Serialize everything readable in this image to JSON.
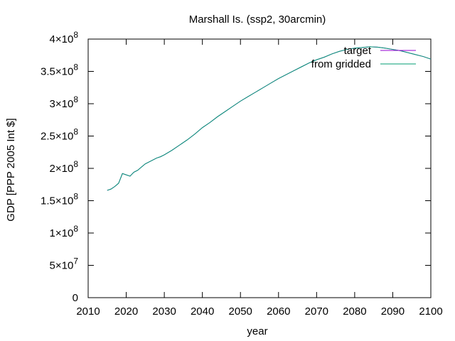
{
  "chart_data": {
    "type": "line",
    "title": "Marshall Is. (ssp2, 30arcmin)",
    "xlabel": "year",
    "ylabel": "GDP [PPP 2005 Int $]",
    "xlim": [
      2010,
      2100
    ],
    "ylim": [
      0,
      400000000
    ],
    "x_ticks": [
      {
        "value": 2010,
        "label": "2010"
      },
      {
        "value": 2020,
        "label": "2020"
      },
      {
        "value": 2030,
        "label": "2030"
      },
      {
        "value": 2040,
        "label": "2040"
      },
      {
        "value": 2050,
        "label": "2050"
      },
      {
        "value": 2060,
        "label": "2060"
      },
      {
        "value": 2070,
        "label": "2070"
      },
      {
        "value": 2080,
        "label": "2080"
      },
      {
        "value": 2090,
        "label": "2090"
      },
      {
        "value": 2100,
        "label": "2100"
      }
    ],
    "y_ticks": [
      {
        "value": 0,
        "mantissa": "0",
        "exp": ""
      },
      {
        "value": 50000000,
        "mantissa": "5×10",
        "exp": "7"
      },
      {
        "value": 100000000,
        "mantissa": "1×10",
        "exp": "8"
      },
      {
        "value": 150000000,
        "mantissa": "1.5×10",
        "exp": "8"
      },
      {
        "value": 200000000,
        "mantissa": "2×10",
        "exp": "8"
      },
      {
        "value": 250000000,
        "mantissa": "2.5×10",
        "exp": "8"
      },
      {
        "value": 300000000,
        "mantissa": "3×10",
        "exp": "8"
      },
      {
        "value": 350000000,
        "mantissa": "3.5×10",
        "exp": "8"
      },
      {
        "value": 400000000,
        "mantissa": "4×10",
        "exp": "8"
      }
    ],
    "grid": false,
    "legend_position": "top-right",
    "series": [
      {
        "name": "target",
        "color": "#9400d3",
        "x": [
          2015,
          2016,
          2017,
          2018,
          2019,
          2020,
          2021,
          2022,
          2023,
          2024,
          2025,
          2026,
          2027,
          2028,
          2029,
          2030,
          2032,
          2034,
          2036,
          2038,
          2040,
          2042,
          2044,
          2046,
          2048,
          2050,
          2052,
          2054,
          2056,
          2058,
          2060,
          2062,
          2064,
          2066,
          2068,
          2070,
          2072,
          2074,
          2076,
          2078,
          2080,
          2082,
          2084,
          2086,
          2088,
          2090,
          2092,
          2094,
          2096,
          2098,
          2100
        ],
        "values": [
          166000000,
          168000000,
          172000000,
          177000000,
          192000000,
          190000000,
          188000000,
          194000000,
          197000000,
          202000000,
          207000000,
          210000000,
          213000000,
          216000000,
          218000000,
          221000000,
          228000000,
          236000000,
          244000000,
          253000000,
          263000000,
          271000000,
          280000000,
          288000000,
          296000000,
          304000000,
          311000000,
          318000000,
          325000000,
          332000000,
          339000000,
          345000000,
          351000000,
          357000000,
          363000000,
          368000000,
          372000000,
          377000000,
          381000000,
          384000000,
          386000000,
          387000000,
          388000000,
          387500000,
          386000000,
          384000000,
          382000000,
          379000000,
          376000000,
          373000000,
          369000000
        ]
      },
      {
        "name": "from gridded",
        "color": "#009e73",
        "x": [
          2015,
          2016,
          2017,
          2018,
          2019,
          2020,
          2021,
          2022,
          2023,
          2024,
          2025,
          2026,
          2027,
          2028,
          2029,
          2030,
          2032,
          2034,
          2036,
          2038,
          2040,
          2042,
          2044,
          2046,
          2048,
          2050,
          2052,
          2054,
          2056,
          2058,
          2060,
          2062,
          2064,
          2066,
          2068,
          2070,
          2072,
          2074,
          2076,
          2078,
          2080,
          2082,
          2084,
          2086,
          2088,
          2090,
          2092,
          2094,
          2096,
          2098,
          2100
        ],
        "values": [
          166000000,
          168000000,
          172000000,
          177000000,
          192000000,
          190000000,
          188000000,
          194000000,
          197000000,
          202000000,
          207000000,
          210000000,
          213000000,
          216000000,
          218000000,
          221000000,
          228000000,
          236000000,
          244000000,
          253000000,
          263000000,
          271000000,
          280000000,
          288000000,
          296000000,
          304000000,
          311000000,
          318000000,
          325000000,
          332000000,
          339000000,
          345000000,
          351000000,
          357000000,
          363000000,
          368000000,
          372000000,
          377000000,
          381000000,
          384000000,
          386000000,
          387000000,
          388000000,
          387500000,
          386000000,
          384000000,
          382000000,
          379000000,
          376000000,
          373000000,
          369000000
        ]
      }
    ]
  }
}
